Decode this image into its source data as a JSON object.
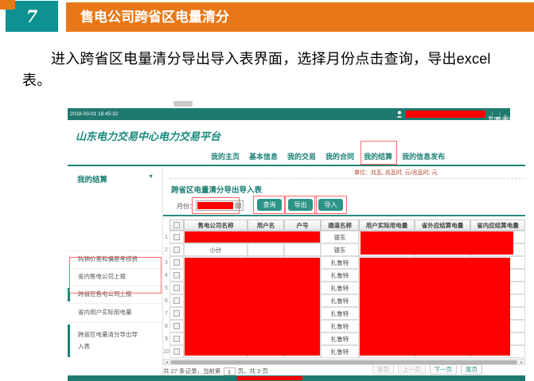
{
  "slide": {
    "number": "7",
    "title": "售电公司跨省区电量清分",
    "body": "进入跨省区电量清分导出导入表界面，选择月份点击查询，导出excel表。"
  },
  "colors": {
    "accent_orange": "#e87817",
    "accent_teal": "#0d9191",
    "app_bar_teal": "#20796f",
    "button_teal": "#2c9487",
    "redaction_red": "#fe0000",
    "annotation_red": "#ff6b6b"
  },
  "app": {
    "topbar": {
      "timestamp": "2018-03-01 18:45:32",
      "home": "首页",
      "logout": "退出",
      "help": "帮助",
      "help_icon": "?",
      "home_icon": "⌂",
      "logout_icon": "↩"
    },
    "logo": "山东电力交易中心电力交易平台",
    "nav": {
      "tabs": [
        {
          "label": "我的主页",
          "annotated": false
        },
        {
          "label": "基本信息",
          "annotated": false
        },
        {
          "label": "我的交易",
          "annotated": false
        },
        {
          "label": "我的合同",
          "annotated": false
        },
        {
          "label": "我的结算",
          "annotated": true
        },
        {
          "label": "我的信息发布",
          "annotated": false
        }
      ]
    },
    "unit_note": "单位：兆瓦, 兆瓦时, 元/兆瓦时, 元",
    "sidebar": {
      "header": "我的结算",
      "caret": "▼",
      "items": [
        {
          "label": "购销价差和偏差考核费",
          "active": false,
          "annotated": false
        },
        {
          "label": "省内售电公司上报",
          "active": false,
          "annotated": false
        },
        {
          "label": "跨省区售电公司上报",
          "active": true,
          "annotated": false
        },
        {
          "label": "省内用户实际用电量",
          "active": false,
          "annotated": false
        },
        {
          "label": "跨省区电量清分导出导入表",
          "active": true,
          "annotated": true
        }
      ]
    },
    "content": {
      "title": "跨省区电量清分导出导入表",
      "month_label": "月份：",
      "month_value_redacted": true,
      "calendar_icon": "▦",
      "buttons": [
        "查询",
        "导出",
        "导入"
      ],
      "table": {
        "headers": [
          "售电公司名称",
          "用户名",
          "户号",
          "通道名称",
          "用户实际用电量",
          "省外应结算电量",
          "省内应结算电量"
        ],
        "rows": [
          {
            "no": "1",
            "company": "",
            "channel": "银东",
            "redacted_left": true,
            "redacted_right": true
          },
          {
            "no": "2",
            "company": "小计",
            "channel": "银东",
            "redacted_left": false,
            "redacted_right": true
          },
          {
            "no": "3",
            "company": "",
            "channel": "扎鲁特",
            "redacted_left": true,
            "redacted_right": true
          },
          {
            "no": "4",
            "company": "",
            "channel": "扎鲁特",
            "redacted_left": true,
            "redacted_right": true
          },
          {
            "no": "5",
            "company": "",
            "channel": "扎鲁特",
            "redacted_left": true,
            "redacted_right": true
          },
          {
            "no": "6",
            "company": "",
            "channel": "扎鲁特",
            "redacted_left": true,
            "redacted_right": true
          },
          {
            "no": "7",
            "company": "",
            "channel": "扎鲁特",
            "redacted_left": true,
            "redacted_right": true
          },
          {
            "no": "8",
            "company": "",
            "channel": "扎鲁特",
            "redacted_left": true,
            "redacted_right": true
          },
          {
            "no": "9",
            "company": "",
            "channel": "扎鲁特",
            "redacted_left": true,
            "redacted_right": true
          },
          {
            "no": "10",
            "company": "",
            "channel": "扎鲁特",
            "redacted_left": true,
            "redacted_right": true
          }
        ]
      },
      "pagination": {
        "summary_prefix": "共 27 条记录，当前第",
        "page": "1",
        "summary_suffix": "页，共 3 页",
        "buttons": [
          {
            "label": "首页",
            "enabled": false
          },
          {
            "label": "上一页",
            "enabled": false
          },
          {
            "label": "下一页",
            "enabled": true
          },
          {
            "label": "尾页",
            "enabled": true
          }
        ]
      }
    }
  }
}
